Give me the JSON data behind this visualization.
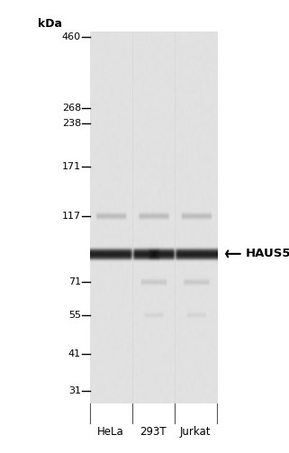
{
  "kda_labels": [
    "460",
    "268",
    "238",
    "171",
    "117",
    "71",
    "55",
    "41",
    "31"
  ],
  "kda_values": [
    460,
    268,
    238,
    171,
    117,
    71,
    55,
    41,
    31
  ],
  "lane_labels": [
    "HeLa",
    "293T",
    "Jurkat"
  ],
  "band_label": "HAUS5",
  "band_kda": 88,
  "fig_bg_color": "#ffffff",
  "text_color": "#000000",
  "log_min": 1.45,
  "log_max": 2.68,
  "gel_gray_base": 0.88,
  "band_main_intensity": 0.08,
  "band_faint_117_intensity": 0.72,
  "band_faint_71_intensity": 0.78,
  "band_faint_55_intensity": 0.82
}
